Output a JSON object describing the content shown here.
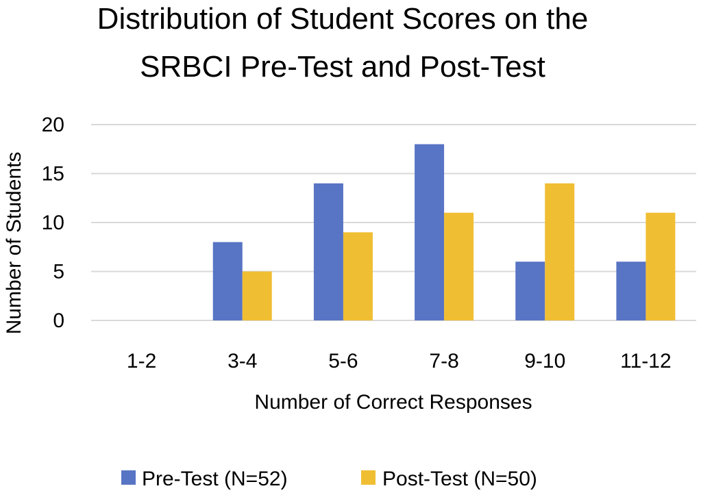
{
  "chart_data": {
    "type": "bar",
    "title_lines": [
      "Distribution of Student Scores on the",
      "SRBCI Pre-Test and Post-Test"
    ],
    "xlabel": "Number of Correct Responses",
    "ylabel": "Number of Students",
    "categories": [
      "1-2",
      "3-4",
      "5-6",
      "7-8",
      "9-10",
      "11-12"
    ],
    "series": [
      {
        "name": "Pre-Test (N=52)",
        "values": [
          0,
          8,
          14,
          18,
          6,
          6
        ],
        "color": "#5874C4"
      },
      {
        "name": "Post-Test (N=50)",
        "values": [
          0,
          5,
          9,
          11,
          14,
          11
        ],
        "color": "#F0BE33"
      }
    ],
    "ylim": [
      0,
      20
    ],
    "yticks": [
      0,
      5,
      10,
      15,
      20
    ],
    "grid": true,
    "gridColor": "#d9d9d9",
    "legend": "bottom"
  }
}
